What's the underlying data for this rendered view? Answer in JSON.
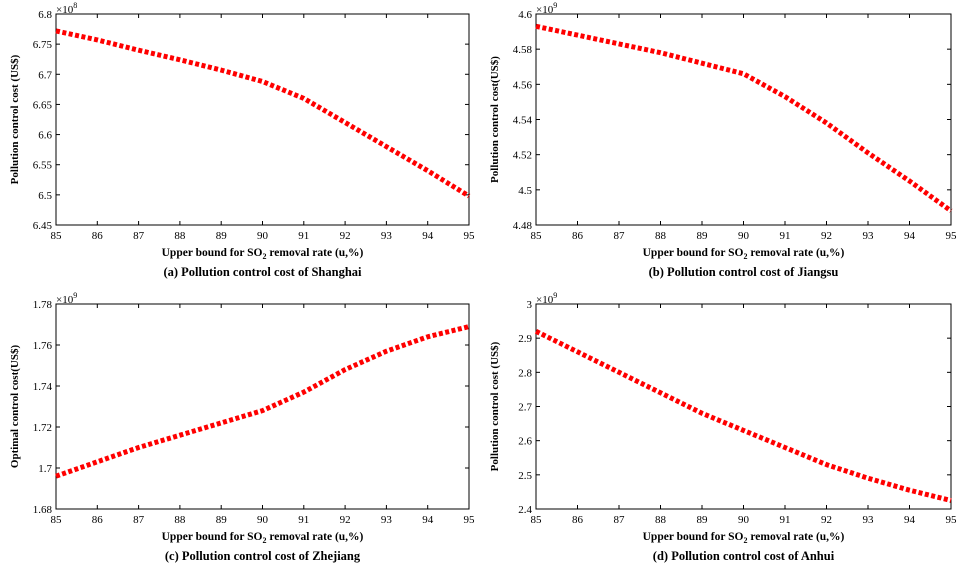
{
  "chart_data": [
    {
      "type": "line",
      "caption": "(a) Pollution control cost of Shanghai",
      "xlabel_pre": "Upper bound for SO",
      "xlabel_sub": "2",
      "xlabel_post": " removal rate (u,%)",
      "ylabel": "Pollution control cost (US$)",
      "multiplier_base": "×10",
      "multiplier_exp": "8",
      "x": [
        85,
        86,
        87,
        88,
        89,
        90,
        91,
        92,
        93,
        94,
        95
      ],
      "y": [
        6.772,
        6.757,
        6.74,
        6.724,
        6.707,
        6.688,
        6.66,
        6.62,
        6.58,
        6.54,
        6.498
      ],
      "xlim": [
        85,
        95
      ],
      "ylim": [
        6.45,
        6.8
      ],
      "xticks": [
        "85",
        "86",
        "87",
        "88",
        "89",
        "90",
        "91",
        "92",
        "93",
        "94",
        "95"
      ],
      "yticks": [
        "6.45",
        "6.5",
        "6.55",
        "6.6",
        "6.65",
        "6.7",
        "6.75",
        "6.8"
      ],
      "line_color": "#ff0000"
    },
    {
      "type": "line",
      "caption": "(b) Pollution control cost of Jiangsu",
      "xlabel_pre": "Upper bound for SO",
      "xlabel_sub": "2",
      "xlabel_post": " removal rate (u,%)",
      "ylabel": "Pollution control cost(US$)",
      "multiplier_base": "×10",
      "multiplier_exp": "9",
      "x": [
        85,
        86,
        87,
        88,
        89,
        90,
        91,
        92,
        93,
        94,
        95
      ],
      "y": [
        4.593,
        4.588,
        4.583,
        4.578,
        4.572,
        4.566,
        4.553,
        4.538,
        4.521,
        4.505,
        4.488
      ],
      "xlim": [
        85,
        95
      ],
      "ylim": [
        4.48,
        4.6
      ],
      "xticks": [
        "85",
        "86",
        "87",
        "88",
        "89",
        "90",
        "91",
        "92",
        "93",
        "94",
        "95"
      ],
      "yticks": [
        "4.48",
        "4.5",
        "4.52",
        "4.54",
        "4.56",
        "4.58",
        "4.6"
      ],
      "line_color": "#ff0000"
    },
    {
      "type": "line",
      "caption": "(c) Pollution control cost of Zhejiang",
      "xlabel_pre": "Upper bound for SO",
      "xlabel_sub": "2",
      "xlabel_post": " removal rate (u,%)",
      "ylabel": "Optimal control cost(US$)",
      "multiplier_base": "×10",
      "multiplier_exp": "9",
      "x": [
        85,
        86,
        87,
        88,
        89,
        90,
        91,
        92,
        93,
        94,
        95
      ],
      "y": [
        1.696,
        1.703,
        1.71,
        1.716,
        1.722,
        1.728,
        1.737,
        1.748,
        1.757,
        1.764,
        1.769
      ],
      "xlim": [
        85,
        95
      ],
      "ylim": [
        1.68,
        1.78
      ],
      "xticks": [
        "85",
        "86",
        "87",
        "88",
        "89",
        "90",
        "91",
        "92",
        "93",
        "94",
        "95"
      ],
      "yticks": [
        "1.68",
        "1.7",
        "1.72",
        "1.74",
        "1.76",
        "1.78"
      ],
      "line_color": "#ff0000"
    },
    {
      "type": "line",
      "caption": "(d) Pollution control cost of Anhui",
      "xlabel_pre": "Upper bound for SO",
      "xlabel_sub": "2",
      "xlabel_post": " removal rate (u,%)",
      "ylabel": "Pollution control cost (US$)",
      "multiplier_base": "×10",
      "multiplier_exp": "9",
      "x": [
        85,
        86,
        87,
        88,
        89,
        90,
        91,
        92,
        93,
        94,
        95
      ],
      "y": [
        2.92,
        2.86,
        2.8,
        2.74,
        2.68,
        2.63,
        2.58,
        2.53,
        2.49,
        2.455,
        2.425
      ],
      "xlim": [
        85,
        95
      ],
      "ylim": [
        2.4,
        3.0
      ],
      "xticks": [
        "85",
        "86",
        "87",
        "88",
        "89",
        "90",
        "91",
        "92",
        "93",
        "94",
        "95"
      ],
      "yticks": [
        "2.4",
        "2.5",
        "2.6",
        "2.7",
        "2.8",
        "2.9",
        "3"
      ],
      "line_color": "#ff0000"
    }
  ]
}
